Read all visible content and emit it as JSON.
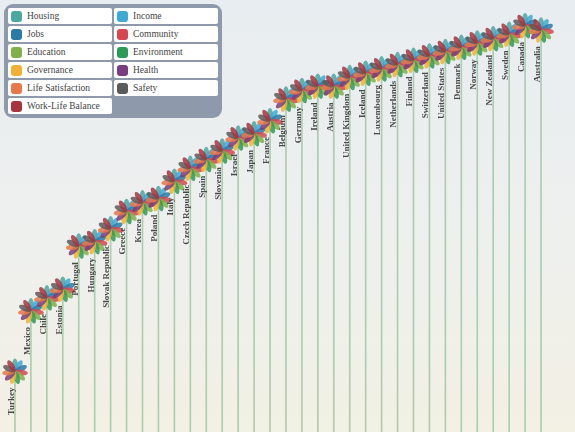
{
  "chart_data": {
    "type": "flower",
    "categories": [
      "Turkey",
      "Mexico",
      "Chile",
      "Estonia",
      "Portugal",
      "Hungary",
      "Slovak Republic",
      "Greece",
      "Korea",
      "Poland",
      "Italy",
      "Czech Republic",
      "Spain",
      "Slovenia",
      "Israel",
      "Japan",
      "France",
      "Belgium",
      "Germany",
      "Ireland",
      "Austria",
      "United Kingdom",
      "Iceland",
      "Luxembourg",
      "Netherlands",
      "Finland",
      "Switzerland",
      "United States",
      "Denmark",
      "Norway",
      "New Zealand",
      "Sweden",
      "Canada",
      "Australia"
    ],
    "values": [
      1.4,
      2.8,
      3.1,
      3.3,
      4.3,
      4.4,
      4.7,
      5.1,
      5.3,
      5.4,
      5.8,
      6.1,
      6.3,
      6.5,
      6.8,
      6.9,
      7.2,
      7.7,
      7.9,
      8.0,
      8.0,
      8.2,
      8.3,
      8.4,
      8.5,
      8.6,
      8.7,
      8.8,
      8.9,
      9.0,
      9.1,
      9.2,
      9.4,
      9.3
    ],
    "color": "#a9cfae",
    "ylim": [
      0,
      10
    ],
    "grid": false,
    "tick_labels": false,
    "legend": "upper left",
    "dimensions": [
      {
        "name": "Housing",
        "color": "#4aa8a0"
      },
      {
        "name": "Income",
        "color": "#3fa9d6"
      },
      {
        "name": "Jobs",
        "color": "#2a7aa8"
      },
      {
        "name": "Community",
        "color": "#d7474f"
      },
      {
        "name": "Education",
        "color": "#7fb04a"
      },
      {
        "name": "Environment",
        "color": "#2e9a57"
      },
      {
        "name": "Governance",
        "color": "#f2b134"
      },
      {
        "name": "Health",
        "color": "#7a3d7e"
      },
      {
        "name": "Life Satisfaction",
        "color": "#e8774a"
      },
      {
        "name": "Safety",
        "color": "#5a5a5a"
      },
      {
        "name": "Work-Life Balance",
        "color": "#a8343f"
      }
    ]
  }
}
